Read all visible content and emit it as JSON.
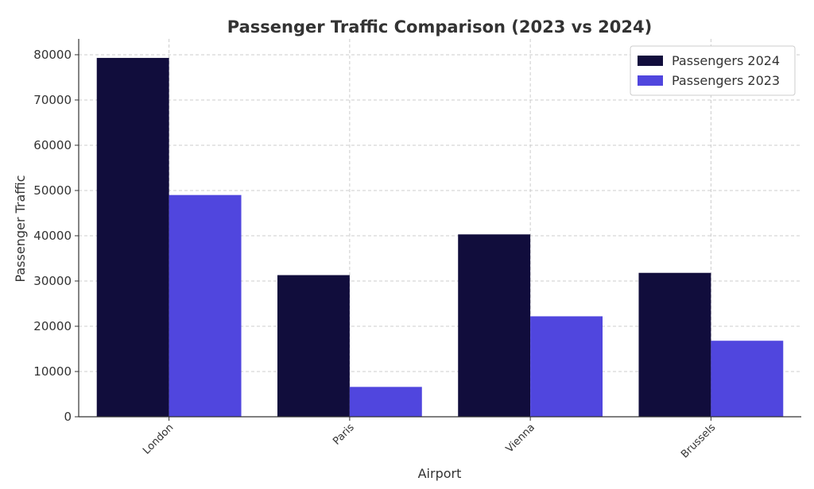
{
  "chart_data": {
    "type": "bar",
    "title": "Passenger Traffic Comparison (2023 vs 2024)",
    "xlabel": "Airport",
    "ylabel": "Passenger Traffic",
    "categories": [
      "London",
      "Paris",
      "Vienna",
      "Brussels"
    ],
    "series": [
      {
        "name": "Passengers 2024",
        "color": "#110d3c",
        "values": [
          79300,
          31300,
          40300,
          31800
        ]
      },
      {
        "name": "Passengers 2023",
        "color": "#5046de",
        "values": [
          49000,
          6600,
          22200,
          16800
        ]
      }
    ],
    "ylim": [
      0,
      83500
    ],
    "yticks": [
      0,
      10000,
      20000,
      30000,
      40000,
      50000,
      60000,
      70000,
      80000
    ],
    "grid": true,
    "legend_position": "top-right"
  }
}
